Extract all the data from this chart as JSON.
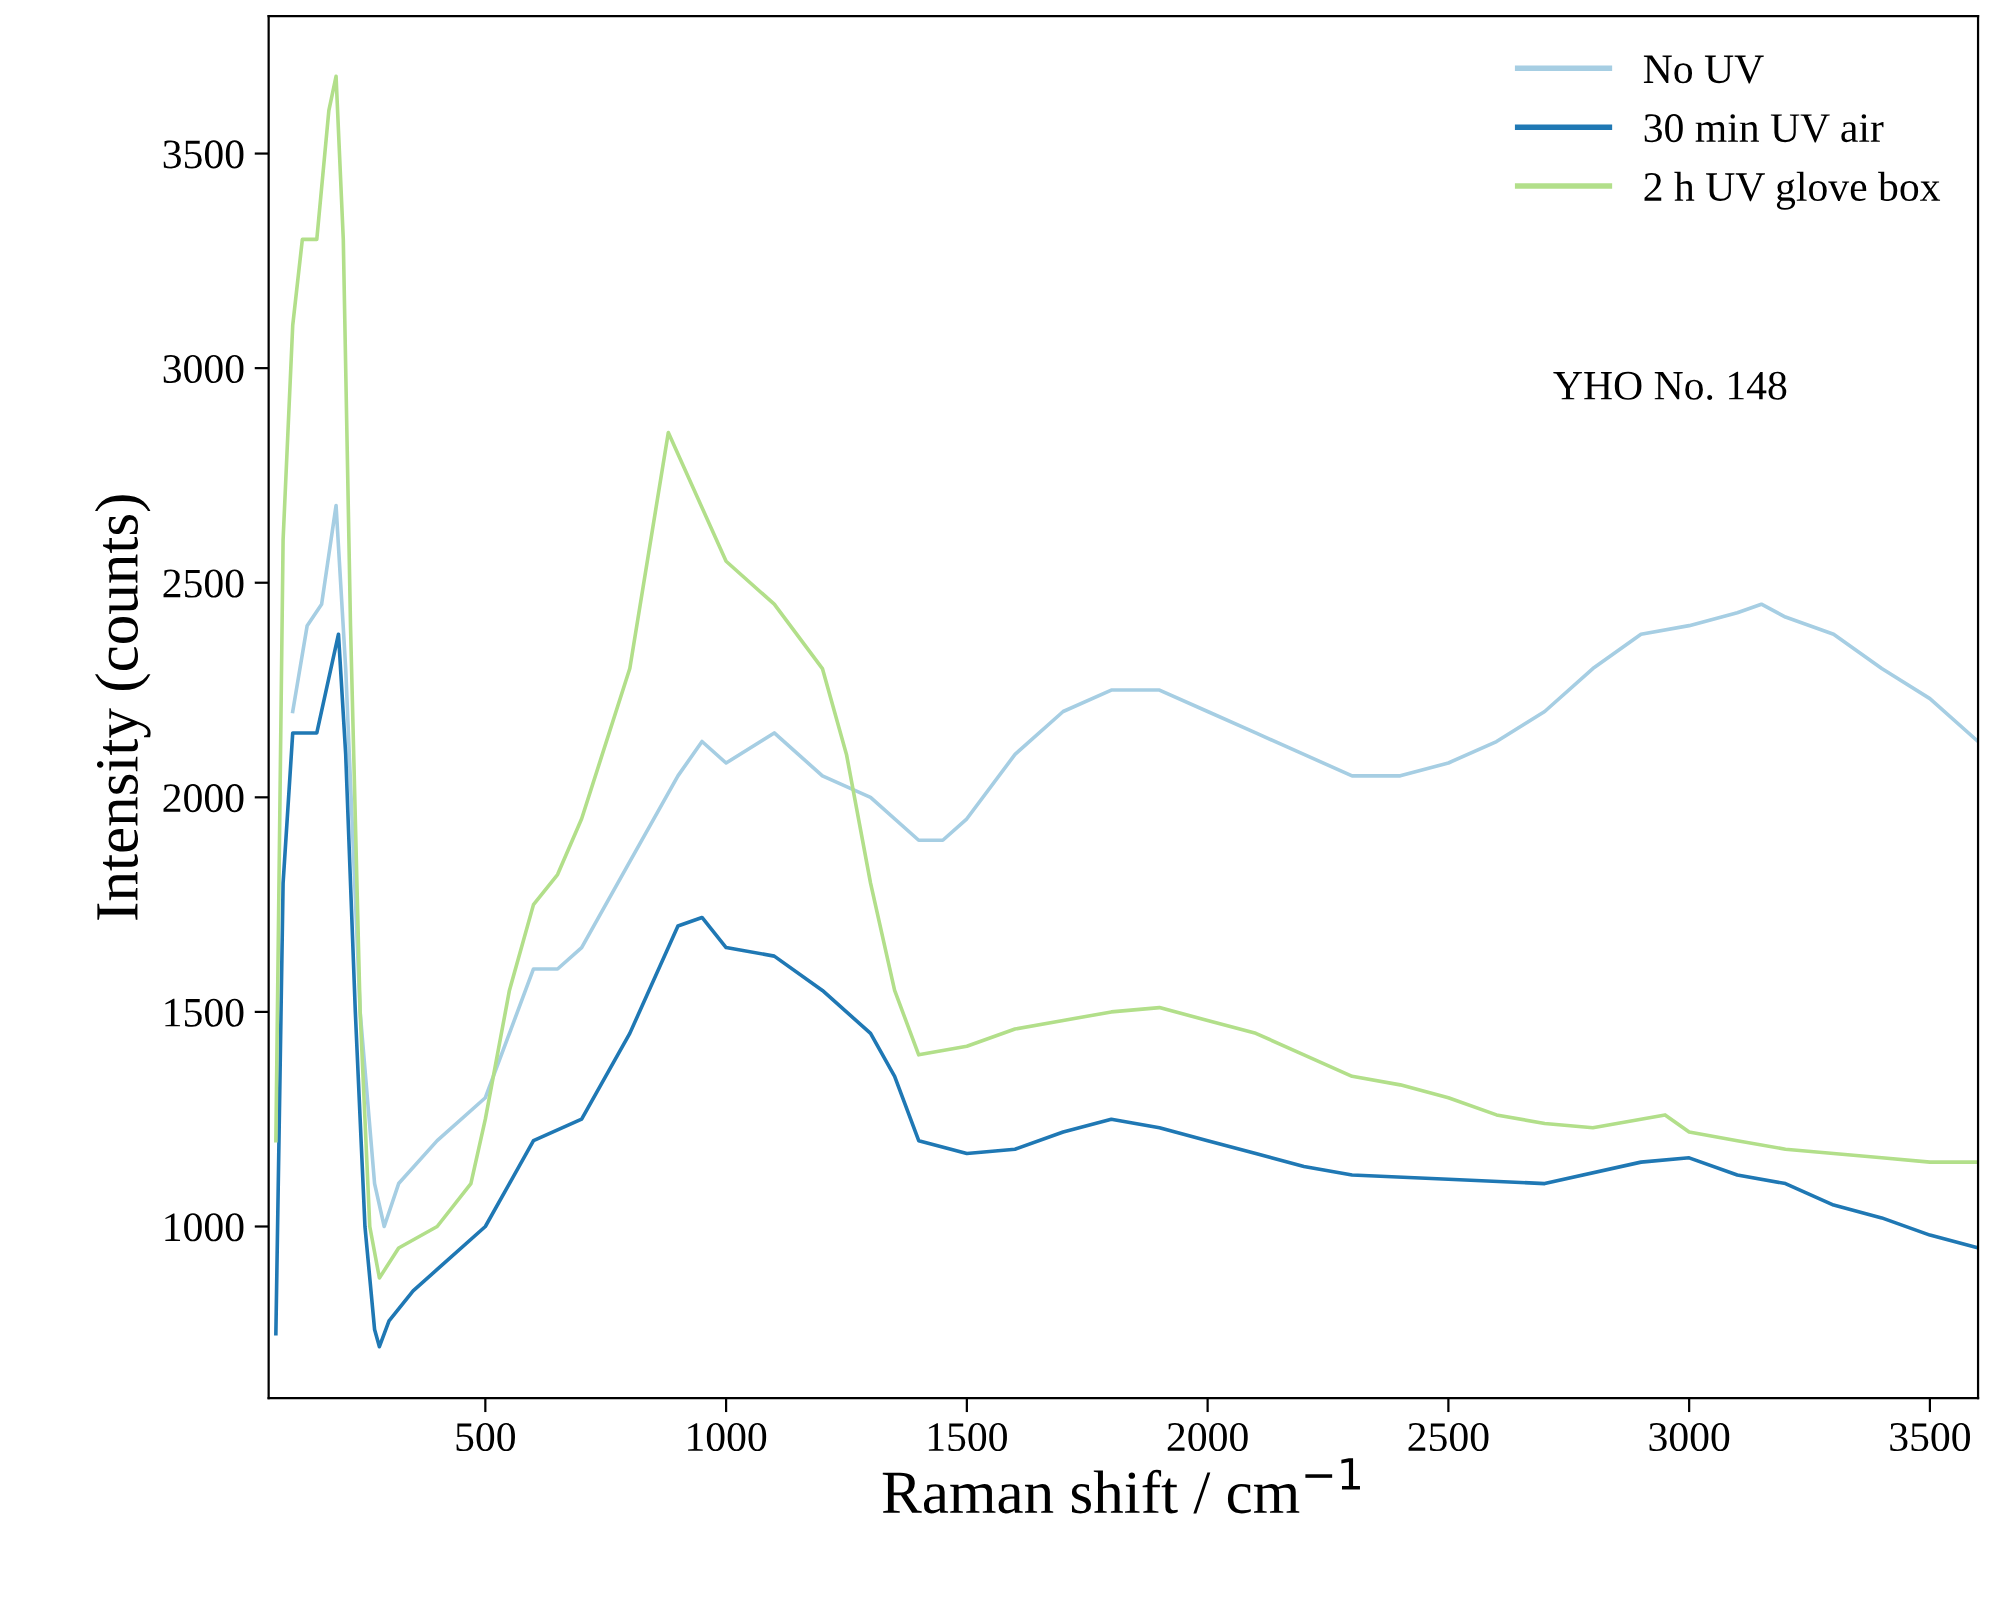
{
  "chart_data": {
    "type": "line",
    "xlabel": "Raman shift / cm$^{−1}$",
    "ylabel": "Intensity (counts)",
    "xlim": [
      50,
      3600
    ],
    "ylim": [
      600,
      3820
    ],
    "xticks": [
      500,
      1000,
      1500,
      2000,
      2500,
      3000,
      3500
    ],
    "yticks": [
      1000,
      1500,
      2000,
      2500,
      3000,
      3500
    ],
    "legend": "top right",
    "grid": false,
    "annotations": [
      "YHO No. 148"
    ],
    "series": [
      {
        "name": "No UV",
        "color": "#a6cee3",
        "x": [
          100,
          130,
          160,
          190,
          210,
          240,
          270,
          290,
          320,
          400,
          500,
          550,
          600,
          650,
          700,
          800,
          900,
          950,
          1000,
          1100,
          1200,
          1300,
          1400,
          1450,
          1500,
          1600,
          1700,
          1800,
          1900,
          2000,
          2100,
          2200,
          2300,
          2400,
          2500,
          2600,
          2700,
          2800,
          2900,
          3000,
          3100,
          3150,
          3200,
          3300,
          3400,
          3500,
          3600
        ],
        "values": [
          2200,
          2400,
          2450,
          2680,
          2300,
          1500,
          1100,
          1000,
          1100,
          1200,
          1300,
          1450,
          1600,
          1600,
          1650,
          1850,
          2050,
          2130,
          2080,
          2150,
          2050,
          2000,
          1900,
          1900,
          1950,
          2100,
          2200,
          2250,
          2250,
          2200,
          2150,
          2100,
          2050,
          2050,
          2080,
          2130,
          2200,
          2300,
          2380,
          2400,
          2430,
          2450,
          2420,
          2380,
          2300,
          2230,
          2130
        ]
      },
      {
        "name": "30 min UV air",
        "color": "#1f78b4",
        "x": [
          65,
          80,
          100,
          150,
          195,
          210,
          230,
          250,
          270,
          280,
          300,
          350,
          400,
          500,
          550,
          600,
          700,
          800,
          900,
          950,
          1000,
          1100,
          1200,
          1300,
          1350,
          1400,
          1500,
          1600,
          1700,
          1800,
          1900,
          2000,
          2100,
          2200,
          2300,
          2500,
          2700,
          2900,
          3000,
          3100,
          3200,
          3300,
          3400,
          3500,
          3600
        ],
        "values": [
          750,
          1800,
          2150,
          2150,
          2380,
          2100,
          1500,
          1000,
          760,
          720,
          780,
          850,
          900,
          1000,
          1100,
          1200,
          1250,
          1450,
          1700,
          1720,
          1650,
          1630,
          1550,
          1450,
          1350,
          1200,
          1170,
          1180,
          1220,
          1250,
          1230,
          1200,
          1170,
          1140,
          1120,
          1110,
          1100,
          1150,
          1160,
          1120,
          1100,
          1050,
          1020,
          980,
          950
        ]
      },
      {
        "name": "2 h UV glove box",
        "color": "#b2df8a",
        "x": [
          65,
          80,
          100,
          120,
          150,
          175,
          190,
          205,
          220,
          240,
          260,
          280,
          320,
          400,
          470,
          500,
          550,
          600,
          650,
          700,
          800,
          880,
          900,
          1000,
          1100,
          1200,
          1250,
          1300,
          1350,
          1400,
          1500,
          1600,
          1700,
          1800,
          1900,
          2000,
          2100,
          2200,
          2300,
          2400,
          2500,
          2600,
          2700,
          2800,
          2900,
          2950,
          3000,
          3100,
          3200,
          3300,
          3400,
          3500,
          3600
        ],
        "values": [
          1200,
          2600,
          3100,
          3300,
          3300,
          3600,
          3680,
          3300,
          2400,
          1500,
          1000,
          880,
          950,
          1000,
          1100,
          1250,
          1550,
          1750,
          1820,
          1950,
          2300,
          2850,
          2800,
          2550,
          2450,
          2300,
          2100,
          1800,
          1550,
          1400,
          1420,
          1460,
          1480,
          1500,
          1510,
          1480,
          1450,
          1400,
          1350,
          1330,
          1300,
          1260,
          1240,
          1230,
          1250,
          1260,
          1220,
          1200,
          1180,
          1170,
          1160,
          1150,
          1150
        ]
      }
    ]
  }
}
